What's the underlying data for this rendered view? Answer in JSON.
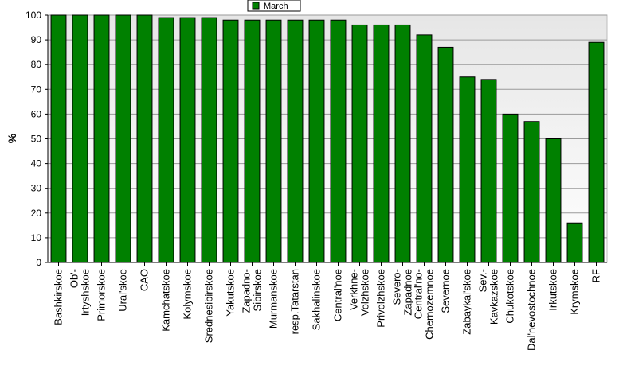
{
  "chart_data": {
    "type": "bar",
    "title": "",
    "xlabel": "",
    "ylabel": "%",
    "ylim": [
      0,
      100
    ],
    "yticks": [
      0,
      10,
      20,
      30,
      40,
      50,
      60,
      70,
      80,
      90,
      100
    ],
    "grid": true,
    "legend_position": "top-center",
    "categories": [
      [
        "Bashkirskoe"
      ],
      [
        "Ob'-",
        "Irtyshskoe"
      ],
      [
        "Primorskoe"
      ],
      [
        "Ural'skoe"
      ],
      [
        "CAO"
      ],
      [
        "Kamchatskoe"
      ],
      [
        "Kolymskoe"
      ],
      [
        "Srednesibirskoe"
      ],
      [
        "Yakutskoe"
      ],
      [
        "Zapadno-",
        "Sibirskoe"
      ],
      [
        "Murmanskoe"
      ],
      [
        "resp.Tatarstan"
      ],
      [
        "Sakhalinskoe"
      ],
      [
        "Central'noe"
      ],
      [
        "Verkhne-",
        "Volzhskoe"
      ],
      [
        "Privolzhskoe"
      ],
      [
        "Severo-",
        "Zapadnoe"
      ],
      [
        "Central'no-",
        "Chernozemnoe"
      ],
      [
        "Severnoe"
      ],
      [
        "Zabaykal'skoe"
      ],
      [
        "Sev.-",
        "Kavkazskoe"
      ],
      [
        "Chukotskoe"
      ],
      [
        "Dal'nevostochnoe"
      ],
      [
        "Irkutskoe"
      ],
      [
        "Krymskoe"
      ],
      [
        "RF"
      ]
    ],
    "series": [
      {
        "name": "March",
        "color": "#008000",
        "values": [
          100,
          100,
          100,
          100,
          100,
          99,
          99,
          99,
          98,
          98,
          98,
          98,
          98,
          98,
          96,
          96,
          96,
          92,
          87,
          75,
          74,
          60,
          57,
          50,
          16,
          89
        ]
      }
    ]
  }
}
